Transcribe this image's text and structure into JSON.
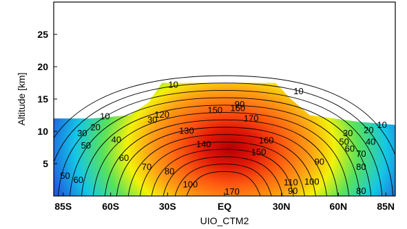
{
  "chart_data": {
    "type": "heatmap",
    "title": "",
    "xlabel": "UIO_CTM2",
    "ylabel": "Altitude [km]",
    "xlim": [
      -90,
      90
    ],
    "ylim": [
      0,
      30
    ],
    "x_ticks": [
      {
        "value": -85,
        "label": "85S"
      },
      {
        "value": -60,
        "label": "60S"
      },
      {
        "value": -30,
        "label": "30S"
      },
      {
        "value": 0,
        "label": "EQ"
      },
      {
        "value": 30,
        "label": "30N"
      },
      {
        "value": 60,
        "label": "60N"
      },
      {
        "value": 85,
        "label": "85N"
      }
    ],
    "y_ticks": [
      5,
      10,
      15,
      20,
      25
    ],
    "grid": false,
    "colormap": [
      "#1e5fe0",
      "#14c6e6",
      "#2ee08a",
      "#f2f20a",
      "#ff9d14",
      "#ff3010",
      "#b40000"
    ],
    "contour_levels": [
      10,
      20,
      30,
      40,
      50,
      60,
      70,
      80,
      90,
      100,
      110,
      120,
      130,
      140,
      150,
      160,
      170
    ],
    "field_top_km": [
      {
        "x": -90,
        "km": 12.0
      },
      {
        "x": -70,
        "km": 12.0
      },
      {
        "x": -50,
        "km": 12.5
      },
      {
        "x": -40,
        "km": 14.5
      },
      {
        "x": -33,
        "km": 17.5
      },
      {
        "x": 27,
        "km": 17.5
      },
      {
        "x": 35,
        "km": 15.0
      },
      {
        "x": 45,
        "km": 12.5
      },
      {
        "x": 70,
        "km": 11.5
      },
      {
        "x": 90,
        "km": 11.0
      }
    ],
    "contour_labels": [
      {
        "text": "10",
        "x": -63,
        "y": 12.2
      },
      {
        "text": "10",
        "x": -27,
        "y": 17.1
      },
      {
        "text": "10",
        "x": 39,
        "y": 16.1
      },
      {
        "text": "10",
        "x": 83,
        "y": 10.9
      },
      {
        "text": "20",
        "x": -68,
        "y": 10.5
      },
      {
        "text": "20",
        "x": 76,
        "y": 10.1
      },
      {
        "text": "30",
        "x": -75,
        "y": 9.6
      },
      {
        "text": "30",
        "x": -38,
        "y": 11.7
      },
      {
        "text": "30",
        "x": 65,
        "y": 9.6
      },
      {
        "text": "40",
        "x": -57,
        "y": 8.6
      },
      {
        "text": "40",
        "x": 77,
        "y": 8.3
      },
      {
        "text": "50",
        "x": -73,
        "y": 7.7
      },
      {
        "text": "50",
        "x": 63,
        "y": 8.3
      },
      {
        "text": "50",
        "x": -84,
        "y": 3.0
      },
      {
        "text": "60",
        "x": -53,
        "y": 5.8
      },
      {
        "text": "60",
        "x": 66,
        "y": 7.2
      },
      {
        "text": "60",
        "x": -77,
        "y": 2.4
      },
      {
        "text": "70",
        "x": -41,
        "y": 4.4
      },
      {
        "text": "70",
        "x": 72,
        "y": 6.4
      },
      {
        "text": "80",
        "x": 72,
        "y": 4.4
      },
      {
        "text": "80",
        "x": -29,
        "y": 3.7
      },
      {
        "text": "80",
        "x": 72,
        "y": 0.7
      },
      {
        "text": "90",
        "x": 8,
        "y": 14.1
      },
      {
        "text": "90",
        "x": 50,
        "y": 5.2
      },
      {
        "text": "90",
        "x": 36,
        "y": 0.7
      },
      {
        "text": "100",
        "x": 46,
        "y": 2.1
      },
      {
        "text": "100",
        "x": -18,
        "y": 1.7
      },
      {
        "text": "110",
        "x": 35,
        "y": 2.0
      },
      {
        "text": "120",
        "x": -33,
        "y": 12.5
      },
      {
        "text": "130",
        "x": -20,
        "y": 10.0
      },
      {
        "text": "140",
        "x": -11,
        "y": 7.9
      },
      {
        "text": "150",
        "x": -5,
        "y": 13.2
      },
      {
        "text": "150",
        "x": 18,
        "y": 6.7
      },
      {
        "text": "160",
        "x": 7,
        "y": 13.5
      },
      {
        "text": "160",
        "x": 22,
        "y": 8.5
      },
      {
        "text": "170",
        "x": 14,
        "y": 11.9
      },
      {
        "text": "170",
        "x": 4,
        "y": 0.6
      }
    ]
  }
}
